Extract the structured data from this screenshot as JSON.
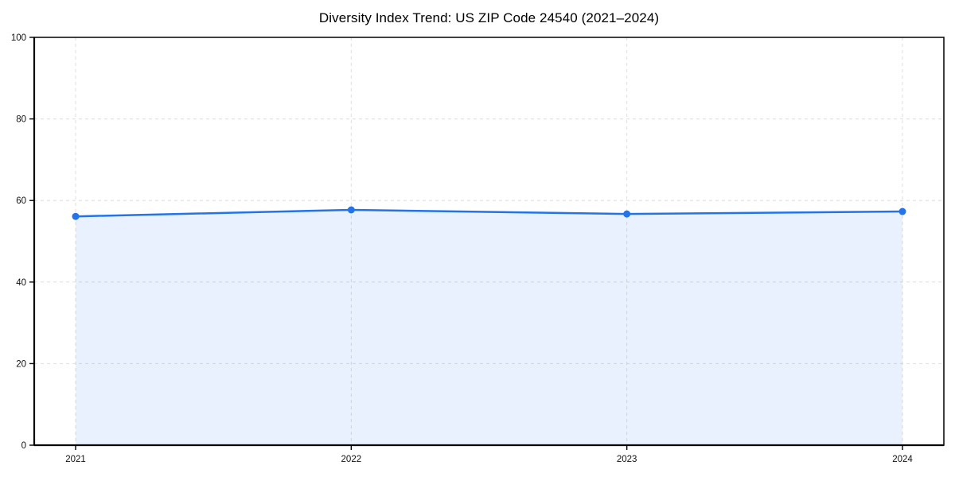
{
  "page": {
    "background_color": "#ffffff"
  },
  "chart_data": {
    "type": "area",
    "title": "Diversity Index Trend: US ZIP Code 24540 (2021–2024)",
    "categories": [
      "2021",
      "2022",
      "2023",
      "2024"
    ],
    "values": [
      56.1,
      57.7,
      56.7,
      57.3
    ],
    "xlabel": "",
    "ylabel": "",
    "ylim": [
      0,
      100
    ],
    "y_ticks": [
      0,
      20,
      40,
      60,
      80,
      100
    ],
    "grid": "dashed, horizontal and vertical at year positions",
    "legend": "none",
    "marker": "circle",
    "line_color": "#2274e8",
    "marker_color": "#2274e8",
    "fill_color": "rgba(34,116,232,0.10)",
    "grid_color": "#dedede",
    "axis_color": "#000000",
    "tick_label_color": "#111111",
    "title_color": "#000000"
  }
}
